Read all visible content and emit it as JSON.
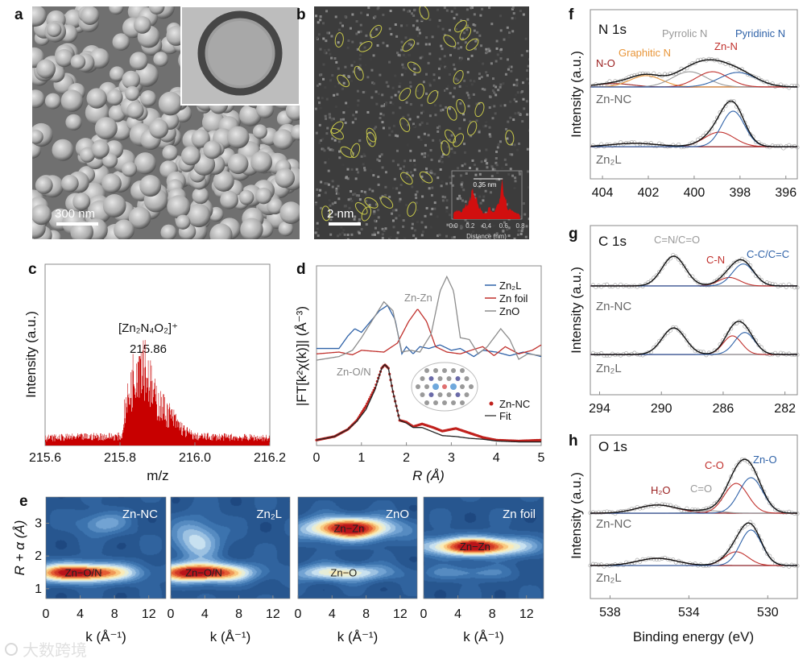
{
  "panel_a": {
    "label": "a",
    "scale_bar": "300 nm"
  },
  "panel_b": {
    "label": "b",
    "scale_bar": "2 nm"
  },
  "watermark": "大数跨境",
  "chart_data": [
    {
      "panel": "c",
      "type": "bar",
      "title": "",
      "xlabel": "m/z",
      "ylabel": "Intensity (a.u.)",
      "xlim": [
        215.6,
        216.2
      ],
      "ylim": [
        0,
        1
      ],
      "xticks": [
        "215.6",
        "215.8",
        "216.0",
        "216.2"
      ],
      "annotation": {
        "formula": "[Zn₂N₄O₂]⁺",
        "value": "215.86"
      },
      "envelope": [
        [
          215.6,
          0.05
        ],
        [
          215.75,
          0.06
        ],
        [
          215.805,
          0.06
        ],
        [
          215.81,
          0.2
        ],
        [
          215.83,
          0.4
        ],
        [
          215.845,
          0.56
        ],
        [
          215.86,
          0.6
        ],
        [
          215.87,
          0.5
        ],
        [
          215.89,
          0.32
        ],
        [
          215.91,
          0.26
        ],
        [
          215.94,
          0.18
        ],
        [
          215.97,
          0.1
        ],
        [
          216.0,
          0.06
        ],
        [
          216.2,
          0.05
        ]
      ]
    },
    {
      "panel": "d",
      "type": "line",
      "xlabel": "R (Å)",
      "ylabel": "|FT[k²χ(k)]| (Å⁻³)",
      "xlim": [
        0,
        5
      ],
      "ylim": [
        0,
        10
      ],
      "xticks": [
        "0",
        "1",
        "2",
        "3",
        "4",
        "5"
      ],
      "annotations": [
        "Zn-Zn",
        "Zn-O/N"
      ],
      "series": [
        {
          "name": "Zn₂L",
          "color": "#2f62a8",
          "points": [
            [
              0,
              5.4
            ],
            [
              0.5,
              5.4
            ],
            [
              0.7,
              6.1
            ],
            [
              0.85,
              6.5
            ],
            [
              1.0,
              6.3
            ],
            [
              1.2,
              6.9
            ],
            [
              1.4,
              7.5
            ],
            [
              1.58,
              7.8
            ],
            [
              1.75,
              7.0
            ],
            [
              1.9,
              5.1
            ],
            [
              2.0,
              5.5
            ],
            [
              2.15,
              5.1
            ],
            [
              2.3,
              5.5
            ],
            [
              2.5,
              5.4
            ],
            [
              2.75,
              5.6
            ],
            [
              3.0,
              5.3
            ],
            [
              3.2,
              5.4
            ],
            [
              3.5,
              4.95
            ],
            [
              3.7,
              5.3
            ],
            [
              4.0,
              5.2
            ],
            [
              4.3,
              5.0
            ],
            [
              4.6,
              5.2
            ],
            [
              5.0,
              4.95
            ]
          ]
        },
        {
          "name": "Zn foil",
          "color": "#c0302c",
          "points": [
            [
              0,
              5.1
            ],
            [
              0.5,
              5.2
            ],
            [
              0.8,
              5.05
            ],
            [
              1.0,
              5.3
            ],
            [
              1.5,
              5.2
            ],
            [
              1.8,
              5.7
            ],
            [
              2.05,
              6.9
            ],
            [
              2.25,
              7.6
            ],
            [
              2.45,
              6.9
            ],
            [
              2.65,
              5.5
            ],
            [
              2.9,
              5.2
            ],
            [
              3.2,
              5.1
            ],
            [
              3.5,
              5.35
            ],
            [
              3.7,
              5.5
            ],
            [
              3.95,
              5.0
            ],
            [
              4.2,
              5.5
            ],
            [
              4.5,
              5.1
            ],
            [
              4.8,
              5.3
            ],
            [
              5.0,
              5.6
            ]
          ]
        },
        {
          "name": "ZnO",
          "color": "#8c8c8c",
          "points": [
            [
              0,
              4.75
            ],
            [
              0.5,
              4.95
            ],
            [
              0.8,
              5.3
            ],
            [
              1.0,
              6.0
            ],
            [
              1.2,
              6.8
            ],
            [
              1.5,
              8.0
            ],
            [
              1.7,
              7.5
            ],
            [
              1.9,
              5.2
            ],
            [
              2.1,
              5.3
            ],
            [
              2.3,
              5.2
            ],
            [
              2.55,
              6.2
            ],
            [
              2.75,
              8.6
            ],
            [
              2.9,
              9.4
            ],
            [
              3.05,
              8.6
            ],
            [
              3.2,
              6.0
            ],
            [
              3.4,
              5.9
            ],
            [
              3.6,
              5.1
            ],
            [
              3.8,
              5.5
            ],
            [
              4.1,
              6.5
            ],
            [
              4.3,
              5.9
            ],
            [
              4.5,
              4.8
            ],
            [
              4.7,
              5.1
            ],
            [
              5.0,
              5.0
            ]
          ]
        },
        {
          "name": "Zn-NC",
          "color": "#c0201c",
          "style": "dots",
          "points": [
            [
              0,
              0.3
            ],
            [
              0.4,
              0.5
            ],
            [
              0.7,
              0.9
            ],
            [
              0.9,
              1.4
            ],
            [
              1.1,
              2.2
            ],
            [
              1.3,
              3.2
            ],
            [
              1.45,
              4.3
            ],
            [
              1.52,
              4.5
            ],
            [
              1.6,
              4.3
            ],
            [
              1.7,
              3.0
            ],
            [
              1.85,
              1.4
            ],
            [
              2.0,
              1.3
            ],
            [
              2.15,
              1.05
            ],
            [
              2.35,
              1.2
            ],
            [
              2.6,
              1.0
            ],
            [
              2.8,
              0.8
            ],
            [
              3.1,
              0.95
            ],
            [
              3.4,
              0.7
            ],
            [
              3.7,
              0.45
            ],
            [
              4.0,
              0.3
            ],
            [
              4.5,
              0.25
            ],
            [
              5.0,
              0.3
            ]
          ]
        },
        {
          "name": "Fit",
          "color": "#222222",
          "points": [
            [
              0,
              0.3
            ],
            [
              0.4,
              0.5
            ],
            [
              0.7,
              0.9
            ],
            [
              0.9,
              1.35
            ],
            [
              1.1,
              2.0
            ],
            [
              1.3,
              3.1
            ],
            [
              1.45,
              4.3
            ],
            [
              1.52,
              4.5
            ],
            [
              1.6,
              4.3
            ],
            [
              1.7,
              3.0
            ],
            [
              1.85,
              1.4
            ],
            [
              2.0,
              1.25
            ],
            [
              2.15,
              1.0
            ],
            [
              2.35,
              1.0
            ],
            [
              2.6,
              0.75
            ],
            [
              2.8,
              0.55
            ],
            [
              3.1,
              0.5
            ],
            [
              3.4,
              0.4
            ],
            [
              3.7,
              0.35
            ],
            [
              4.0,
              0.25
            ],
            [
              4.5,
              0.2
            ],
            [
              5.0,
              0.2
            ]
          ]
        }
      ]
    },
    {
      "panel": "e",
      "type": "heatmap",
      "xlabel": "k (Å⁻¹)",
      "ylabel": "R + α (Å)",
      "xlim": [
        0,
        14
      ],
      "ylim": [
        0.7,
        3.8
      ],
      "xticks": [
        "0",
        "4",
        "8",
        "12"
      ],
      "yticks": [
        "1",
        "2",
        "3"
      ],
      "maps": [
        {
          "name": "Zn-NC",
          "features": [
            {
              "label": "Zn−O/N",
              "k": 4,
              "R": 1.5,
              "amp": 1.0,
              "sk": 4.2,
              "sR": 0.2
            },
            {
              "label": "",
              "k": 6.5,
              "R": 3.0,
              "amp": 0.3,
              "sk": 2.0,
              "sR": 0.25
            }
          ]
        },
        {
          "name": "Zn₂L",
          "features": [
            {
              "label": "Zn−O/N",
              "k": 3.5,
              "R": 1.5,
              "amp": 1.0,
              "sk": 4.0,
              "sR": 0.2
            },
            {
              "label": "",
              "k": 3.0,
              "R": 2.5,
              "amp": 0.42,
              "sk": 2.0,
              "sR": 0.45
            }
          ]
        },
        {
          "name": "ZnO",
          "features": [
            {
              "label": "Zn−Zn",
              "k": 6,
              "R": 2.85,
              "amp": 1.0,
              "sk": 3.6,
              "sR": 0.24
            },
            {
              "label": "Zn−O",
              "k": 5,
              "R": 1.5,
              "amp": 0.55,
              "sk": 4.0,
              "sR": 0.18
            }
          ]
        },
        {
          "name": "Zn foil",
          "features": [
            {
              "label": "Zn−Zn",
              "k": 6,
              "R": 2.3,
              "amp": 1.0,
              "sk": 4.0,
              "sR": 0.2
            },
            {
              "label": "",
              "k": 5,
              "R": 1.5,
              "amp": 0.22,
              "sk": 3.5,
              "sR": 0.15
            }
          ]
        }
      ]
    },
    {
      "panel": "f",
      "type": "line",
      "title": "N 1s",
      "xlabel": "",
      "ylabel": "Intensity (a.u.)",
      "xlim": [
        404.53,
        395.5
      ],
      "ylim": [
        0,
        10
      ],
      "xticks": [
        "404",
        "402",
        "400",
        "398",
        "396"
      ],
      "samples": [
        {
          "name": "Zn-NC",
          "baseline": 5.43,
          "components": [
            {
              "name": "N-O",
              "center": 403.5,
              "height": 0.2,
              "sigma": 0.8,
              "color": "#9b2020"
            },
            {
              "name": "Graphitic N",
              "center": 402.1,
              "height": 0.67,
              "sigma": 0.7,
              "color": "#e8963a"
            },
            {
              "name": "Pyrrolic N",
              "center": 400.2,
              "height": 0.9,
              "sigma": 0.75,
              "color": "#999999"
            },
            {
              "name": "Zn-N",
              "center": 399.2,
              "height": 0.9,
              "sigma": 0.7,
              "color": "#c0302c"
            },
            {
              "name": "Pyridinic N",
              "center": 398.1,
              "height": 0.86,
              "sigma": 0.8,
              "color": "#2f62a8"
            }
          ]
        },
        {
          "name": "Zn₂L",
          "baseline": 1.9,
          "components": [
            {
              "name": "",
              "center": 402.6,
              "height": 0.2,
              "sigma": 1.0,
              "color": "#9b2020"
            },
            {
              "name": "Zn-N",
              "center": 398.9,
              "height": 0.86,
              "sigma": 0.65,
              "color": "#c0302c"
            },
            {
              "name": "Pyridinic N",
              "center": 398.3,
              "height": 2.1,
              "sigma": 0.5,
              "color": "#2f62a8"
            }
          ]
        }
      ]
    },
    {
      "panel": "g",
      "type": "line",
      "title": "C 1s",
      "xlabel": "",
      "ylabel": "Intensity (a.u.)",
      "xlim": [
        294.6,
        281.2
      ],
      "ylim": [
        0,
        10
      ],
      "xticks": [
        "294",
        "290",
        "286",
        "282"
      ],
      "samples": [
        {
          "name": "Zn-NC",
          "baseline": 6.43,
          "components": [
            {
              "name": "C=N/C=O",
              "center": 289.2,
              "height": 1.76,
              "sigma": 0.75,
              "color": "#999999"
            },
            {
              "name": "C-N",
              "center": 285.6,
              "height": 0.5,
              "sigma": 0.7,
              "color": "#c0302c"
            },
            {
              "name": "C-C/C=C",
              "center": 284.7,
              "height": 1.3,
              "sigma": 0.7,
              "color": "#2f62a8"
            }
          ]
        },
        {
          "name": "Zn₂L",
          "baseline": 2.38,
          "components": [
            {
              "name": "",
              "center": 289.2,
              "height": 1.57,
              "sigma": 0.75,
              "color": "#999999"
            },
            {
              "name": "",
              "center": 285.4,
              "height": 1.1,
              "sigma": 0.6,
              "color": "#c0302c"
            },
            {
              "name": "",
              "center": 284.6,
              "height": 1.3,
              "sigma": 0.65,
              "color": "#2f62a8"
            }
          ]
        }
      ]
    },
    {
      "panel": "h",
      "type": "line",
      "title": "O 1s",
      "xlabel": "Binding energy (eV)",
      "ylabel": "Intensity (a.u.)",
      "xlim": [
        539.0,
        528.5
      ],
      "ylim": [
        0,
        10
      ],
      "xticks": [
        "538",
        "534",
        "530"
      ],
      "samples": [
        {
          "name": "Zn-NC",
          "baseline": 5.22,
          "components": [
            {
              "name": "H₂O",
              "center": 535.6,
              "height": 0.5,
              "sigma": 1.0,
              "color": "#9b2020"
            },
            {
              "name": "C=O",
              "center": 533.0,
              "height": 0.15,
              "sigma": 0.7,
              "color": "#999999"
            },
            {
              "name": "C-O",
              "center": 531.6,
              "height": 1.82,
              "sigma": 0.6,
              "color": "#c0302c"
            },
            {
              "name": "Zn-O",
              "center": 530.85,
              "height": 2.17,
              "sigma": 0.6,
              "color": "#2f62a8"
            }
          ]
        },
        {
          "name": "Zn₂L",
          "baseline": 2.02,
          "components": [
            {
              "name": "",
              "center": 535.6,
              "height": 0.44,
              "sigma": 1.0,
              "color": "#9b2020"
            },
            {
              "name": "",
              "center": 531.6,
              "height": 0.84,
              "sigma": 0.6,
              "color": "#c0302c"
            },
            {
              "name": "",
              "center": 530.85,
              "height": 2.17,
              "sigma": 0.55,
              "color": "#2f62a8"
            }
          ]
        }
      ]
    },
    {
      "panel": "b-inset",
      "type": "area",
      "xlabel": "Distance (nm)",
      "xlim": [
        0,
        0.8
      ],
      "ylim": [
        0,
        1
      ],
      "xticks": [
        "0.0",
        "0.2",
        "0.4",
        "0.6",
        "0.8"
      ],
      "annotation": "0.35 nm",
      "points": [
        [
          0,
          0.15
        ],
        [
          0.05,
          0.2
        ],
        [
          0.1,
          0.18
        ],
        [
          0.15,
          0.3
        ],
        [
          0.2,
          0.45
        ],
        [
          0.23,
          0.7
        ],
        [
          0.26,
          0.55
        ],
        [
          0.3,
          0.3
        ],
        [
          0.35,
          0.15
        ],
        [
          0.4,
          0.12
        ],
        [
          0.43,
          0.3
        ],
        [
          0.46,
          0.15
        ],
        [
          0.5,
          0.2
        ],
        [
          0.55,
          0.45
        ],
        [
          0.58,
          0.95
        ],
        [
          0.61,
          0.6
        ],
        [
          0.65,
          0.25
        ],
        [
          0.7,
          0.2
        ],
        [
          0.75,
          0.15
        ],
        [
          0.8,
          0.12
        ]
      ]
    }
  ]
}
